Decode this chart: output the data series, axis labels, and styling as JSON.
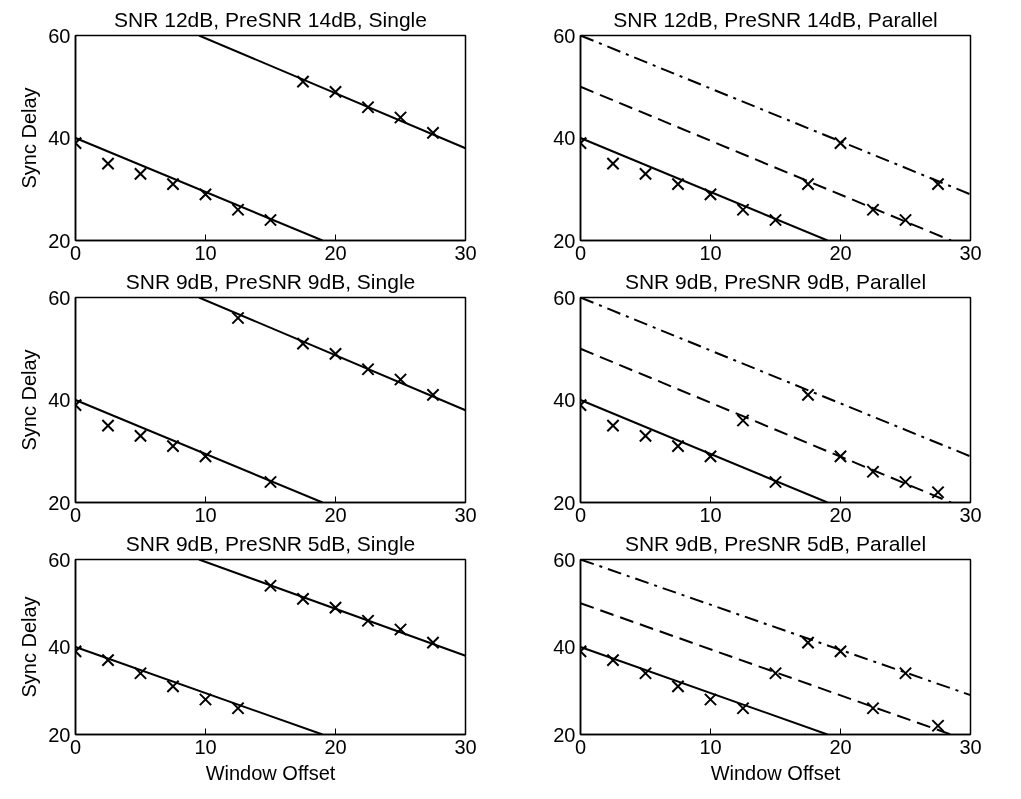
{
  "chart_data": [
    {
      "type": "scatter",
      "title": "SNR 12dB, PreSNR 14dB, Single",
      "ylabel": "Sync Delay",
      "xlim": [
        0,
        30
      ],
      "ylim": [
        20,
        60
      ],
      "xticks": [
        0,
        10,
        20,
        30
      ],
      "yticks": [
        20,
        40,
        60
      ],
      "grid": false,
      "series": [
        {
          "type": "line",
          "color": "#000000",
          "line_style": "solid",
          "x": [
            0,
            19
          ],
          "values": [
            40,
            20
          ]
        },
        {
          "type": "line",
          "color": "#000000",
          "line_style": "solid",
          "x": [
            9.5,
            30
          ],
          "values": [
            60,
            38
          ]
        },
        {
          "marker": "cross",
          "color": "#000000",
          "x": [
            0,
            2.5,
            5,
            7.5,
            10,
            12.5,
            15,
            17.5,
            20,
            22.5,
            25,
            27.5
          ],
          "values": [
            39,
            35,
            33,
            31,
            29,
            26,
            24,
            51,
            49,
            46,
            44,
            41
          ]
        }
      ]
    },
    {
      "type": "scatter",
      "title": "SNR 12dB, PreSNR 14dB, Parallel",
      "xlim": [
        0,
        30
      ],
      "ylim": [
        20,
        60
      ],
      "xticks": [
        0,
        10,
        20,
        30
      ],
      "yticks": [
        20,
        40,
        60
      ],
      "grid": false,
      "series": [
        {
          "type": "line",
          "color": "#000000",
          "line_style": "solid",
          "x": [
            0,
            19
          ],
          "values": [
            40,
            20
          ]
        },
        {
          "type": "line",
          "color": "#000000",
          "line_style": "dashed",
          "x": [
            0,
            28.5
          ],
          "values": [
            50,
            20
          ]
        },
        {
          "type": "line",
          "color": "#000000",
          "line_style": "dashdot",
          "x": [
            0,
            30
          ],
          "values": [
            60,
            29
          ]
        },
        {
          "marker": "cross",
          "color": "#000000",
          "x": [
            0,
            2.5,
            5,
            7.5,
            10,
            12.5,
            15,
            17.5,
            20,
            22.5,
            25,
            27.5
          ],
          "values": [
            39,
            35,
            33,
            31,
            29,
            26,
            24,
            31,
            39,
            26,
            24,
            31
          ]
        }
      ]
    },
    {
      "type": "scatter",
      "title": "SNR 9dB, PreSNR 9dB, Single",
      "ylabel": "Sync Delay",
      "xlim": [
        0,
        30
      ],
      "ylim": [
        20,
        60
      ],
      "xticks": [
        0,
        10,
        20,
        30
      ],
      "yticks": [
        20,
        40,
        60
      ],
      "grid": false,
      "series": [
        {
          "type": "line",
          "color": "#000000",
          "line_style": "solid",
          "x": [
            0,
            19
          ],
          "values": [
            40,
            20
          ]
        },
        {
          "type": "line",
          "color": "#000000",
          "line_style": "solid",
          "x": [
            9.5,
            30
          ],
          "values": [
            60,
            38
          ]
        },
        {
          "marker": "cross",
          "color": "#000000",
          "x": [
            0,
            2.5,
            5,
            7.5,
            10,
            12.5,
            15,
            17.5,
            20,
            22.5,
            25,
            27.5
          ],
          "values": [
            39,
            35,
            33,
            31,
            29,
            56,
            24,
            51,
            49,
            46,
            44,
            41
          ]
        }
      ]
    },
    {
      "type": "scatter",
      "title": "SNR 9dB, PreSNR 9dB, Parallel",
      "xlim": [
        0,
        30
      ],
      "ylim": [
        20,
        60
      ],
      "xticks": [
        0,
        10,
        20,
        30
      ],
      "yticks": [
        20,
        40,
        60
      ],
      "grid": false,
      "series": [
        {
          "type": "line",
          "color": "#000000",
          "line_style": "solid",
          "x": [
            0,
            19
          ],
          "values": [
            40,
            20
          ]
        },
        {
          "type": "line",
          "color": "#000000",
          "line_style": "dashed",
          "x": [
            0,
            28.5
          ],
          "values": [
            50,
            20
          ]
        },
        {
          "type": "line",
          "color": "#000000",
          "line_style": "dashdot",
          "x": [
            0,
            30
          ],
          "values": [
            60,
            29
          ]
        },
        {
          "marker": "cross",
          "color": "#000000",
          "x": [
            0,
            2.5,
            5,
            7.5,
            10,
            12.5,
            15,
            17.5,
            20,
            22.5,
            25,
            27.5
          ],
          "values": [
            39,
            35,
            33,
            31,
            29,
            36,
            24,
            41,
            29,
            26,
            24,
            22
          ]
        }
      ]
    },
    {
      "type": "scatter",
      "title": "SNR 9dB, PreSNR 5dB, Single",
      "xlabel": "Window Offset",
      "ylabel": "Sync Delay",
      "xlim": [
        0,
        30
      ],
      "ylim": [
        20,
        60
      ],
      "xticks": [
        0,
        10,
        20,
        30
      ],
      "yticks": [
        20,
        40,
        60
      ],
      "grid": false,
      "series": [
        {
          "type": "line",
          "color": "#000000",
          "line_style": "solid",
          "x": [
            0,
            19
          ],
          "values": [
            40,
            20
          ]
        },
        {
          "type": "line",
          "color": "#000000",
          "line_style": "solid",
          "x": [
            9.5,
            30
          ],
          "values": [
            60,
            38
          ]
        },
        {
          "marker": "cross",
          "color": "#000000",
          "x": [
            0,
            2.5,
            5,
            7.5,
            10,
            12.5,
            15,
            17.5,
            20,
            22.5,
            25,
            27.5
          ],
          "values": [
            39,
            37,
            34,
            31,
            28,
            26,
            54,
            51,
            49,
            46,
            44,
            41
          ]
        }
      ]
    },
    {
      "type": "scatter",
      "title": "SNR 9dB, PreSNR 5dB, Parallel",
      "xlabel": "Window Offset",
      "xlim": [
        0,
        30
      ],
      "ylim": [
        20,
        60
      ],
      "xticks": [
        0,
        10,
        20,
        30
      ],
      "yticks": [
        20,
        40,
        60
      ],
      "grid": false,
      "series": [
        {
          "type": "line",
          "color": "#000000",
          "line_style": "solid",
          "x": [
            0,
            19
          ],
          "values": [
            40,
            20
          ]
        },
        {
          "type": "line",
          "color": "#000000",
          "line_style": "dashed",
          "x": [
            0,
            28.5
          ],
          "values": [
            50,
            20
          ]
        },
        {
          "type": "line",
          "color": "#000000",
          "line_style": "dashdot",
          "x": [
            0,
            30
          ],
          "values": [
            60,
            29
          ]
        },
        {
          "marker": "cross",
          "color": "#000000",
          "x": [
            0,
            2.5,
            5,
            7.5,
            10,
            12.5,
            15,
            17.5,
            20,
            22.5,
            25,
            27.5
          ],
          "values": [
            39,
            37,
            34,
            31,
            28,
            26,
            34,
            41,
            39,
            26,
            34,
            22
          ]
        }
      ]
    }
  ]
}
